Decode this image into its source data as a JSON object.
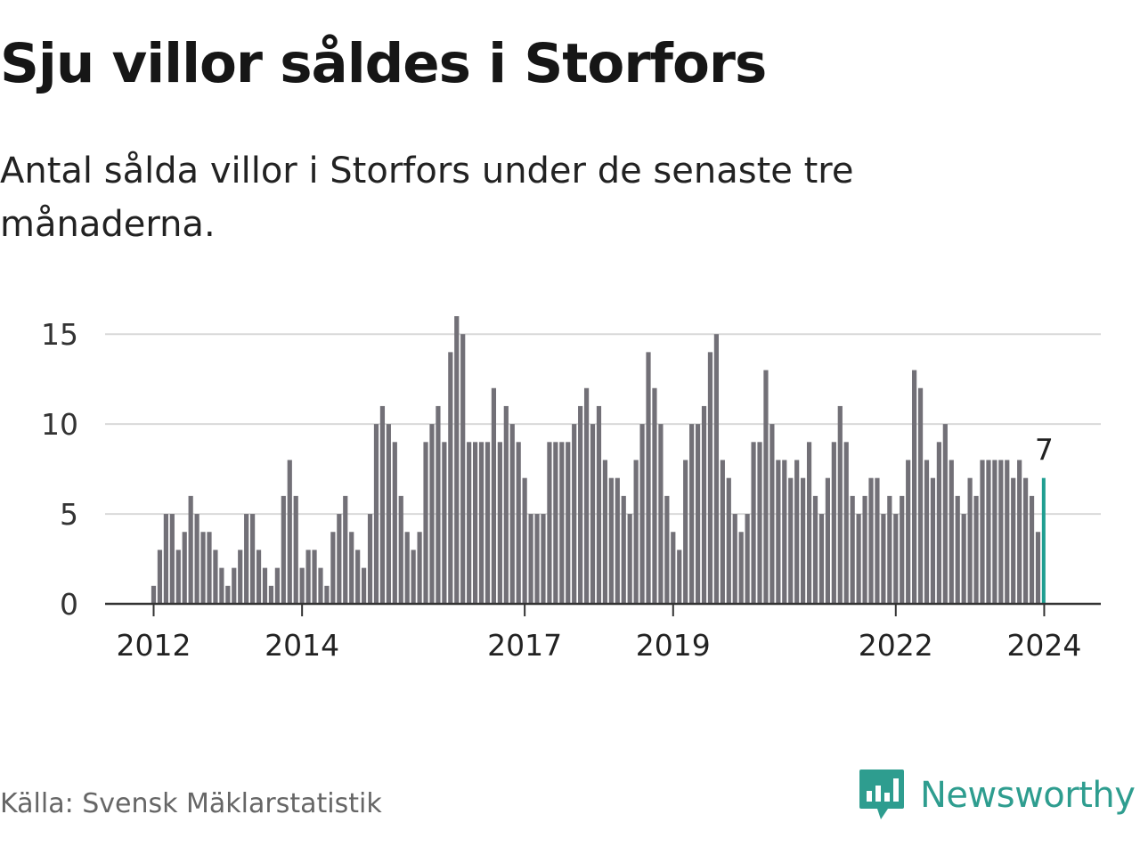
{
  "header": {
    "title": "Sju villor såldes i Storfors",
    "subtitle": "Antal sålda villor i Storfors under de senaste tre månaderna."
  },
  "footer": {
    "source": "Källa: Svensk Mäklarstatistik",
    "logo_text": "Newsworthy"
  },
  "colors": {
    "bar": "#727077",
    "highlight": "#1f9e91",
    "grid": "#d9d9d9",
    "axis": "#333333",
    "brand": "#2e9d8f"
  },
  "chart_data": {
    "type": "bar",
    "title": "Sju villor såldes i Storfors",
    "xlabel": "",
    "ylabel": "",
    "ylim": [
      0,
      16
    ],
    "yticks": [
      0,
      5,
      10,
      15
    ],
    "x_start": "2012-01",
    "x_end": "2024-01",
    "xtick_labels": [
      "2012",
      "2014",
      "2017",
      "2019",
      "2022",
      "2024"
    ],
    "xtick_indices": [
      0,
      24,
      60,
      84,
      120,
      144
    ],
    "highlight_label": "7",
    "highlight_index": 144,
    "values": [
      1,
      3,
      5,
      5,
      3,
      4,
      6,
      5,
      4,
      4,
      3,
      2,
      1,
      2,
      3,
      5,
      5,
      3,
      2,
      1,
      2,
      6,
      8,
      6,
      2,
      3,
      3,
      2,
      1,
      4,
      5,
      6,
      4,
      3,
      2,
      5,
      10,
      11,
      10,
      9,
      6,
      4,
      3,
      4,
      9,
      10,
      11,
      9,
      14,
      16,
      15,
      9,
      9,
      9,
      9,
      12,
      9,
      11,
      10,
      9,
      7,
      5,
      5,
      5,
      9,
      9,
      9,
      9,
      10,
      11,
      12,
      10,
      11,
      8,
      7,
      7,
      6,
      5,
      8,
      10,
      14,
      12,
      10,
      6,
      4,
      3,
      8,
      10,
      10,
      11,
      14,
      15,
      8,
      7,
      5,
      4,
      5,
      9,
      9,
      13,
      10,
      8,
      8,
      7,
      8,
      7,
      9,
      6,
      5,
      7,
      9,
      11,
      9,
      6,
      5,
      6,
      7,
      7,
      5,
      6,
      5,
      6,
      8,
      13,
      12,
      8,
      7,
      9,
      10,
      8,
      6,
      5,
      7,
      6,
      8,
      8,
      8,
      8,
      8,
      7,
      8,
      7,
      6,
      4,
      7
    ]
  }
}
